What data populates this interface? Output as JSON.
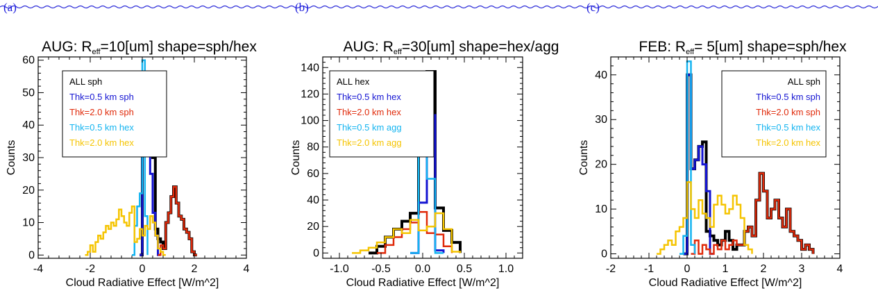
{
  "colors": {
    "wavy": "#2a2ad8",
    "panel_label": "#1a1adc",
    "black": "#000000",
    "blue": "#1414d2",
    "red": "#e02a0a",
    "cyan": "#14b4f0",
    "yellow": "#f5c400"
  },
  "chart_data": [
    {
      "type": "histogram",
      "panel_label": "(a)",
      "title_prefix": "AUG:  R",
      "title_sub": "eff",
      "title_suffix": "=10[um]  shape=sph/hex",
      "xlabel": "Cloud Radiative Effect [W/m^2]",
      "ylabel": "Counts",
      "xlim": [
        -4,
        4
      ],
      "ylim": [
        -1,
        61
      ],
      "xticks": [
        -4,
        -2,
        0,
        2,
        4
      ],
      "yticks": [
        0,
        10,
        20,
        30,
        40,
        50,
        60
      ],
      "legend": {
        "placement": "top-left"
      },
      "series": [
        {
          "name": "ALL sph",
          "color": "black",
          "x": [
            -0.1,
            0.0,
            0.1,
            0.2,
            0.3,
            0.4,
            0.5,
            0.6,
            0.7,
            0.8,
            0.9,
            1.0,
            1.1,
            1.2,
            1.3,
            1.4,
            1.5,
            1.6,
            1.7,
            1.8,
            1.9,
            2.0,
            2.1
          ],
          "y": [
            0,
            55,
            33,
            35,
            36,
            30,
            8,
            5,
            4,
            2,
            10,
            13,
            18,
            21,
            16,
            12,
            11,
            8,
            7,
            5,
            1,
            0,
            0
          ]
        },
        {
          "name": "Thk=0.5 km sph",
          "color": "blue",
          "x": [
            -0.1,
            0.0,
            0.1,
            0.2,
            0.3,
            0.4,
            0.5,
            0.6,
            0.7
          ],
          "y": [
            0,
            56,
            33,
            31,
            25,
            13,
            6,
            0,
            0
          ]
        },
        {
          "name": "Thk=2.0 km sph",
          "color": "red",
          "x": [
            0.6,
            0.7,
            0.8,
            0.9,
            1.0,
            1.1,
            1.2,
            1.3,
            1.4,
            1.5,
            1.6,
            1.7,
            1.8,
            1.9,
            2.0,
            2.1
          ],
          "y": [
            0,
            3,
            2,
            10,
            13,
            18,
            21,
            16,
            12,
            11,
            8,
            7,
            5,
            1,
            0,
            0
          ]
        },
        {
          "name": "Thk=0.5 km hex",
          "color": "cyan",
          "x": [
            -0.4,
            -0.3,
            -0.2,
            -0.1,
            0.0,
            0.1,
            0.2
          ],
          "y": [
            0,
            9,
            15,
            19,
            60,
            12,
            0
          ]
        },
        {
          "name": "Thk=2.0 km hex",
          "color": "yellow",
          "x": [
            -2.2,
            -2.1,
            -2.0,
            -1.9,
            -1.8,
            -1.7,
            -1.6,
            -1.5,
            -1.4,
            -1.3,
            -1.2,
            -1.1,
            -1.0,
            -0.9,
            -0.8,
            -0.7,
            -0.6,
            -0.5,
            -0.4,
            -0.3,
            -0.2,
            -0.1,
            0.0,
            0.1,
            0.2,
            0.3,
            0.4,
            0.5,
            0.6,
            0.7,
            0.8,
            0.9
          ],
          "y": [
            0,
            1,
            3,
            1,
            4,
            6,
            5,
            7,
            9,
            8,
            10,
            9,
            11,
            14,
            12,
            10,
            9,
            13,
            15,
            4,
            5,
            8,
            6,
            9,
            8,
            12,
            10,
            6,
            2,
            1,
            0,
            0
          ]
        }
      ]
    },
    {
      "type": "histogram",
      "panel_label": "(b)",
      "title_prefix": "AUG:  R",
      "title_sub": "eff",
      "title_suffix": "=30[um]  shape=hex/agg",
      "xlabel": "Cloud Radiative Effect [W/m^2]",
      "ylabel": "Counts",
      "xlim": [
        -1.2,
        1.2
      ],
      "ylim": [
        -4,
        148
      ],
      "xticks": [
        -1.0,
        -0.5,
        0.0,
        0.5,
        1.0
      ],
      "yticks": [
        0,
        20,
        40,
        60,
        80,
        100,
        120,
        140
      ],
      "legend": {
        "placement": "top-left"
      },
      "series": [
        {
          "name": "ALL hex",
          "color": "black",
          "x": [
            -0.65,
            -0.55,
            -0.45,
            -0.35,
            -0.25,
            -0.15,
            -0.05,
            0.05,
            0.15,
            0.25,
            0.35,
            0.45
          ],
          "y": [
            0,
            5,
            12,
            18,
            24,
            30,
            90,
            137,
            34,
            17,
            8,
            0
          ]
        },
        {
          "name": "Thk=0.5 km hex",
          "color": "blue",
          "x": [
            -0.15,
            -0.05,
            0.05,
            0.15,
            0.25
          ],
          "y": [
            0,
            38,
            104,
            2,
            0
          ]
        },
        {
          "name": "Thk=2.0 km hex",
          "color": "red",
          "x": [
            -0.55,
            -0.45,
            -0.35,
            -0.25,
            -0.15,
            -0.05,
            0.05,
            0.15,
            0.25,
            0.35
          ],
          "y": [
            0,
            6,
            12,
            18,
            23,
            31,
            15,
            14,
            5,
            0
          ]
        },
        {
          "name": "Thk=0.5 km agg",
          "color": "cyan",
          "x": [
            -0.15,
            -0.05,
            0.05,
            0.15,
            0.25
          ],
          "y": [
            0,
            100,
            56,
            0,
            0
          ]
        },
        {
          "name": "Thk=2.0 km agg",
          "color": "yellow",
          "x": [
            -0.85,
            -0.75,
            -0.65,
            -0.55,
            -0.45,
            -0.35,
            -0.25,
            -0.15,
            -0.05,
            0.05,
            0.15,
            0.25,
            0.35,
            0.45
          ],
          "y": [
            0,
            2,
            4,
            8,
            12,
            18,
            15,
            25,
            17,
            20,
            30,
            18,
            1,
            0
          ]
        }
      ]
    },
    {
      "type": "histogram",
      "panel_label": "(c)",
      "title_prefix": "FEB:  R",
      "title_sub": "eff",
      "title_suffix": "= 5[um]  shape=sph/hex",
      "xlabel": "Cloud Radiative Effect [W/m^2]",
      "ylabel": "Counts",
      "xlim": [
        -2,
        4
      ],
      "ylim": [
        -1,
        44
      ],
      "xticks": [
        -2,
        -1,
        0,
        1,
        2,
        3,
        4
      ],
      "yticks": [
        0,
        10,
        20,
        30,
        40
      ],
      "legend": {
        "placement": "top-right"
      },
      "series": [
        {
          "name": "ALL sph",
          "color": "black",
          "x": [
            -0.1,
            0.0,
            0.1,
            0.2,
            0.3,
            0.4,
            0.5,
            0.6,
            0.7,
            0.8,
            0.9,
            1.0,
            1.1,
            1.2,
            1.3,
            1.4,
            1.5,
            1.6,
            1.7,
            1.8,
            1.9,
            2.0,
            2.1,
            2.2,
            2.3,
            2.4,
            2.5,
            2.6,
            2.7,
            2.8,
            2.9,
            3.0,
            3.1,
            3.2,
            3.3
          ],
          "y": [
            0,
            40,
            19,
            21,
            24,
            25,
            5,
            4,
            3,
            2,
            3,
            5,
            3,
            1,
            2,
            2,
            5,
            6,
            4,
            12,
            18,
            14,
            8,
            10,
            12,
            8,
            6,
            10,
            5,
            4,
            3,
            1,
            2,
            1,
            0
          ]
        },
        {
          "name": "Thk=0.5 km sph",
          "color": "blue",
          "x": [
            -0.1,
            0.0,
            0.1,
            0.2,
            0.3,
            0.4,
            0.5,
            0.6,
            0.7
          ],
          "y": [
            0,
            40,
            19,
            21,
            24,
            20,
            14,
            0,
            0
          ]
        },
        {
          "name": "Thk=2.0 km sph",
          "color": "red",
          "x": [
            0.1,
            0.2,
            0.3,
            0.4,
            0.5,
            0.6,
            0.7,
            0.8,
            0.9,
            1.0,
            1.1,
            1.2,
            1.3,
            1.4,
            1.5,
            1.6,
            1.7,
            1.8,
            1.9,
            2.0,
            2.1,
            2.2,
            2.3,
            2.4,
            2.5,
            2.6,
            2.7,
            2.8,
            2.9,
            3.0,
            3.1,
            3.2,
            3.3
          ],
          "y": [
            0,
            3,
            0,
            2,
            1,
            0,
            2,
            1,
            3,
            1,
            2,
            3,
            2,
            2,
            5,
            6,
            4,
            12,
            18,
            14,
            8,
            10,
            12,
            8,
            6,
            10,
            5,
            4,
            3,
            1,
            2,
            1,
            0
          ]
        },
        {
          "name": "Thk=0.5 km hex",
          "color": "cyan",
          "x": [
            -0.2,
            -0.1,
            0.0,
            0.1,
            0.2
          ],
          "y": [
            0,
            4,
            43,
            2,
            0
          ]
        },
        {
          "name": "Thk=2.0 km hex",
          "color": "yellow",
          "x": [
            -0.8,
            -0.7,
            -0.6,
            -0.5,
            -0.4,
            -0.3,
            -0.2,
            -0.1,
            0.0,
            0.1,
            0.2,
            0.3,
            0.4,
            0.5,
            0.6,
            0.7,
            0.8,
            0.9,
            1.0,
            1.1,
            1.2,
            1.3,
            1.4,
            1.5,
            1.6,
            1.7
          ],
          "y": [
            0,
            1,
            2,
            3,
            2,
            5,
            6,
            8,
            16,
            10,
            8,
            12,
            9,
            8,
            6,
            11,
            13,
            11,
            9,
            10,
            13,
            11,
            8,
            2,
            1,
            0
          ]
        }
      ]
    }
  ]
}
